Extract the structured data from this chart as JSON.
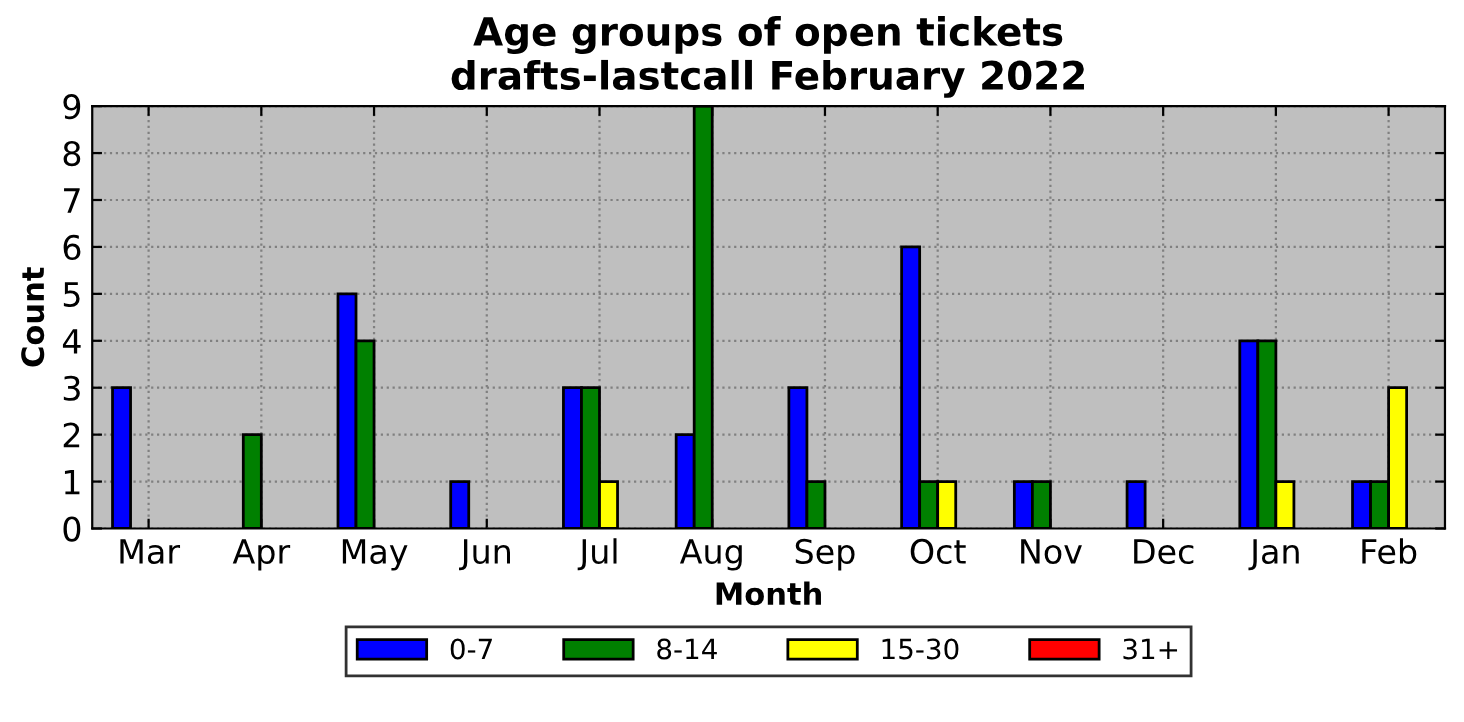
{
  "chart_data": {
    "type": "bar",
    "title": "Age groups of open tickets\ndrafts-lastcall February 2022",
    "xlabel": "Month",
    "ylabel": "Count",
    "categories": [
      "Mar",
      "Apr",
      "May",
      "Jun",
      "Jul",
      "Aug",
      "Sep",
      "Oct",
      "Nov",
      "Dec",
      "Jan",
      "Feb"
    ],
    "series": [
      {
        "name": "0-7",
        "color": "#0000ff",
        "values": [
          3,
          0,
          5,
          1,
          3,
          2,
          3,
          6,
          1,
          1,
          4,
          1
        ]
      },
      {
        "name": "8-14",
        "color": "#008000",
        "values": [
          0,
          2,
          4,
          0,
          3,
          9,
          1,
          1,
          1,
          0,
          4,
          1
        ]
      },
      {
        "name": "15-30",
        "color": "#ffff00",
        "values": [
          0,
          0,
          0,
          0,
          1,
          0,
          0,
          1,
          0,
          0,
          1,
          3
        ]
      },
      {
        "name": "31+",
        "color": "#ff0000",
        "values": [
          0,
          0,
          0,
          0,
          0,
          0,
          0,
          0,
          0,
          0,
          0,
          0
        ]
      }
    ],
    "ylim": [
      0,
      9
    ],
    "yticks": [
      0,
      1,
      2,
      3,
      4,
      5,
      6,
      7,
      8,
      9
    ],
    "grid": true,
    "legend": "bottom"
  }
}
